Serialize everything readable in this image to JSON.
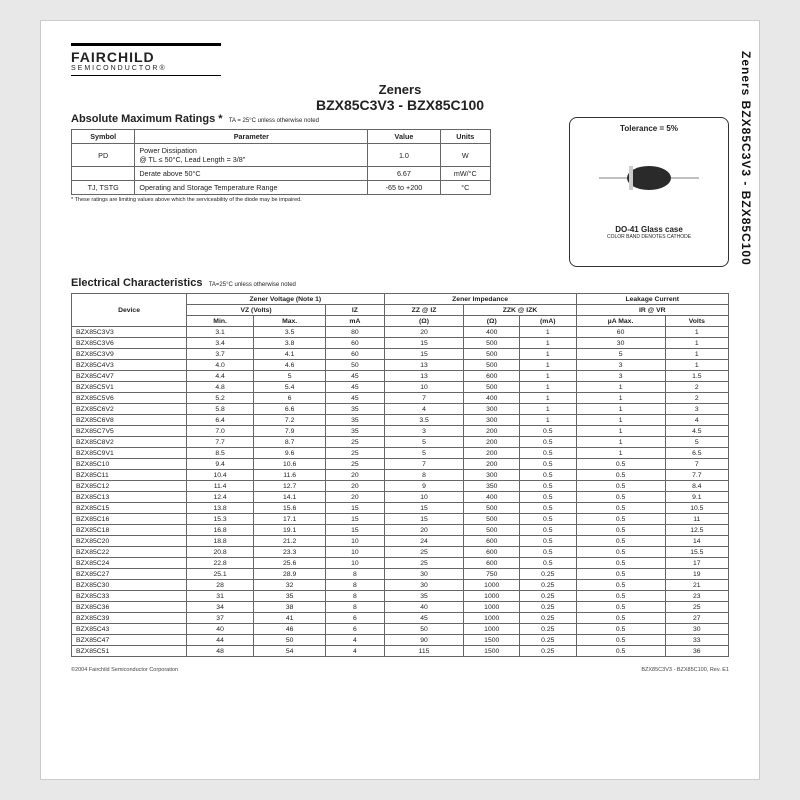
{
  "side_title": "Zeners BZX85C3V3 - BZX85C100",
  "logo": {
    "main": "FAIRCHILD",
    "sub": "SEMICONDUCTOR®"
  },
  "title": {
    "line1": "Zeners",
    "line2": "BZX85C3V3 - BZX85C100"
  },
  "amr": {
    "heading": "Absolute Maximum Ratings *",
    "note": "TA = 25°C unless otherwise noted",
    "headers": [
      "Symbol",
      "Parameter",
      "Value",
      "Units"
    ],
    "rows": [
      {
        "sym": "PD",
        "param": "Power Dissipation\n@ TL ≤ 50°C, Lead Length = 3/8\"",
        "val": "1.0",
        "unit": "W"
      },
      {
        "sym": "",
        "param": "Derate above 50°C",
        "val": "6.67",
        "unit": "mW/°C"
      },
      {
        "sym": "TJ, TSTG",
        "param": "Operating and Storage Temperature Range",
        "val": "-65 to +200",
        "unit": "°C"
      }
    ],
    "footnote": "* These ratings are limiting values above which the serviceability of the diode may be impaired."
  },
  "package": {
    "tolerance": "Tolerance = 5%",
    "name": "DO-41 Glass case",
    "note": "COLOR BAND DENOTES CATHODE",
    "body_color": "#2a2a2a",
    "lead_color": "#bfbfbf"
  },
  "ec": {
    "heading": "Electrical Characteristics",
    "note": "TA=25°C unless otherwise noted",
    "group_headers": {
      "device": "Device",
      "zv": "Zener Voltage (Note 1)",
      "zi": "Zener Impedance",
      "lc": "Leakage Current"
    },
    "sub_headers": {
      "vz": "VZ (Volts)",
      "iz": "IZ",
      "zziz": "ZZ @ IZ",
      "zzkizk": "ZZK @ IZK",
      "ir": "IR @ VR"
    },
    "unit_headers": {
      "min": "Min.",
      "max": "Max.",
      "ma": "mA",
      "ohm1": "(Ω)",
      "ohm2": "(Ω)",
      "ma2": "(mA)",
      "ua": "µA Max.",
      "volts": "Volts"
    },
    "groups": [
      [
        [
          "BZX85C3V3",
          "3.1",
          "3.5",
          "80",
          "20",
          "400",
          "1",
          "60",
          "1"
        ],
        [
          "BZX85C3V6",
          "3.4",
          "3.8",
          "60",
          "15",
          "500",
          "1",
          "30",
          "1"
        ],
        [
          "BZX85C3V9",
          "3.7",
          "4.1",
          "60",
          "15",
          "500",
          "1",
          "5",
          "1"
        ],
        [
          "BZX85C4V3",
          "4.0",
          "4.6",
          "50",
          "13",
          "500",
          "1",
          "3",
          "1"
        ],
        [
          "BZX85C4V7",
          "4.4",
          "5",
          "45",
          "13",
          "600",
          "1",
          "3",
          "1.5"
        ]
      ],
      [
        [
          "BZX85C5V1",
          "4.8",
          "5.4",
          "45",
          "10",
          "500",
          "1",
          "1",
          "2"
        ],
        [
          "BZX85C5V6",
          "5.2",
          "6",
          "45",
          "7",
          "400",
          "1",
          "1",
          "2"
        ],
        [
          "BZX85C6V2",
          "5.8",
          "6.6",
          "35",
          "4",
          "300",
          "1",
          "1",
          "3"
        ],
        [
          "BZX85C6V8",
          "6.4",
          "7.2",
          "35",
          "3.5",
          "300",
          "1",
          "1",
          "4"
        ],
        [
          "BZX85C7V5",
          "7.0",
          "7.9",
          "35",
          "3",
          "200",
          "0.5",
          "1",
          "4.5"
        ]
      ],
      [
        [
          "BZX85C8V2",
          "7.7",
          "8.7",
          "25",
          "5",
          "200",
          "0.5",
          "1",
          "5"
        ],
        [
          "BZX85C9V1",
          "8.5",
          "9.6",
          "25",
          "5",
          "200",
          "0.5",
          "1",
          "6.5"
        ],
        [
          "BZX85C10",
          "9.4",
          "10.6",
          "25",
          "7",
          "200",
          "0.5",
          "0.5",
          "7"
        ],
        [
          "BZX85C11",
          "10.4",
          "11.6",
          "20",
          "8",
          "300",
          "0.5",
          "0.5",
          "7.7"
        ],
        [
          "BZX85C12",
          "11.4",
          "12.7",
          "20",
          "9",
          "350",
          "0.5",
          "0.5",
          "8.4"
        ]
      ],
      [
        [
          "BZX85C13",
          "12.4",
          "14.1",
          "20",
          "10",
          "400",
          "0.5",
          "0.5",
          "9.1"
        ],
        [
          "BZX85C15",
          "13.8",
          "15.6",
          "15",
          "15",
          "500",
          "0.5",
          "0.5",
          "10.5"
        ],
        [
          "BZX85C16",
          "15.3",
          "17.1",
          "15",
          "15",
          "500",
          "0.5",
          "0.5",
          "11"
        ],
        [
          "BZX85C18",
          "16.8",
          "19.1",
          "15",
          "20",
          "500",
          "0.5",
          "0.5",
          "12.5"
        ],
        [
          "BZX85C20",
          "18.8",
          "21.2",
          "10",
          "24",
          "600",
          "0.5",
          "0.5",
          "14"
        ]
      ],
      [
        [
          "BZX85C22",
          "20.8",
          "23.3",
          "10",
          "25",
          "600",
          "0.5",
          "0.5",
          "15.5"
        ],
        [
          "BZX85C24",
          "22.8",
          "25.6",
          "10",
          "25",
          "600",
          "0.5",
          "0.5",
          "17"
        ],
        [
          "BZX85C27",
          "25.1",
          "28.9",
          "8",
          "30",
          "750",
          "0.25",
          "0.5",
          "19"
        ],
        [
          "BZX85C30",
          "28",
          "32",
          "8",
          "30",
          "1000",
          "0.25",
          "0.5",
          "21"
        ],
        [
          "BZX85C33",
          "31",
          "35",
          "8",
          "35",
          "1000",
          "0.25",
          "0.5",
          "23"
        ]
      ],
      [
        [
          "BZX85C36",
          "34",
          "38",
          "8",
          "40",
          "1000",
          "0.25",
          "0.5",
          "25"
        ],
        [
          "BZX85C39",
          "37",
          "41",
          "6",
          "45",
          "1000",
          "0.25",
          "0.5",
          "27"
        ],
        [
          "BZX85C43",
          "40",
          "46",
          "6",
          "50",
          "1000",
          "0.25",
          "0.5",
          "30"
        ],
        [
          "BZX85C47",
          "44",
          "50",
          "4",
          "90",
          "1500",
          "0.25",
          "0.5",
          "33"
        ],
        [
          "BZX85C51",
          "48",
          "54",
          "4",
          "115",
          "1500",
          "0.25",
          "0.5",
          "36"
        ]
      ]
    ]
  },
  "footer": {
    "left": "©2004 Fairchild Semiconductor Corporation",
    "right": "BZX85C3V3 - BZX85C100, Rev. E1"
  }
}
